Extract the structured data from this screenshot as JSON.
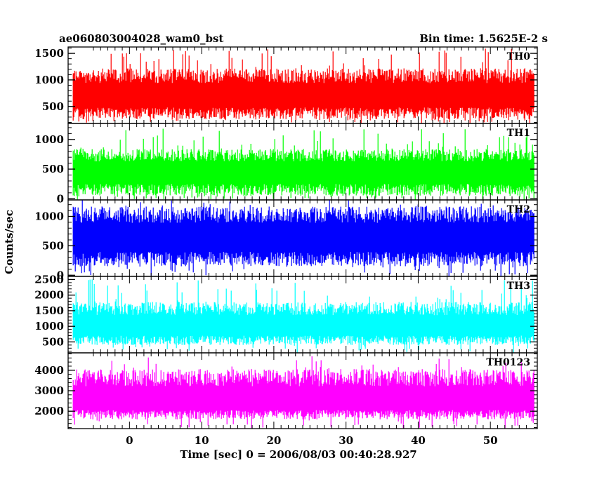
{
  "header": {
    "title": "ae060803004028_wam0_bst",
    "bin_time": "Bin time: 1.5625E-2 s"
  },
  "chart_data": {
    "type": "line",
    "title": "ae060803004028_wam0_bst",
    "xlabel": "Time [sec] 0 = 2006/08/03 00:40:28.927",
    "ylabel": "Counts/sec",
    "xlim": [
      -8.5,
      56.5
    ],
    "x_data_range": [
      -7.8,
      56.0
    ],
    "xticks": [
      0,
      10,
      20,
      30,
      40,
      50
    ],
    "grid": false,
    "legend": "none",
    "panels": [
      {
        "name": "TH0",
        "color": "#ff0000",
        "ylim": [
          180,
          1620
        ],
        "yticks": [
          500,
          1000,
          1500
        ],
        "baseline": 260,
        "median": 700,
        "typical_high": 1100,
        "peak": 1600
      },
      {
        "name": "TH1",
        "color": "#00ff00",
        "ylim": [
          -20,
          1270
        ],
        "yticks": [
          0,
          500,
          1000
        ],
        "baseline": 50,
        "median": 450,
        "typical_high": 750,
        "peak": 1230
      },
      {
        "name": "TH2",
        "color": "#0000ff",
        "ylim": [
          -20,
          1280
        ],
        "yticks": [
          0,
          500,
          1000
        ],
        "baseline": 150,
        "median": 650,
        "typical_high": 1050,
        "peak": 1280
      },
      {
        "name": "TH3",
        "color": "#00ffff",
        "ylim": [
          150,
          2600
        ],
        "yticks": [
          500,
          1000,
          1500,
          2000,
          2500
        ],
        "baseline": 400,
        "median": 1000,
        "typical_high": 1600,
        "peak": 2500
      },
      {
        "name": "TH0123",
        "color": "#ff00ff",
        "ylim": [
          1150,
          4850
        ],
        "yticks": [
          2000,
          3000,
          4000
        ],
        "baseline": 1600,
        "median": 2500,
        "typical_high": 3700,
        "peak": 4750
      }
    ]
  }
}
